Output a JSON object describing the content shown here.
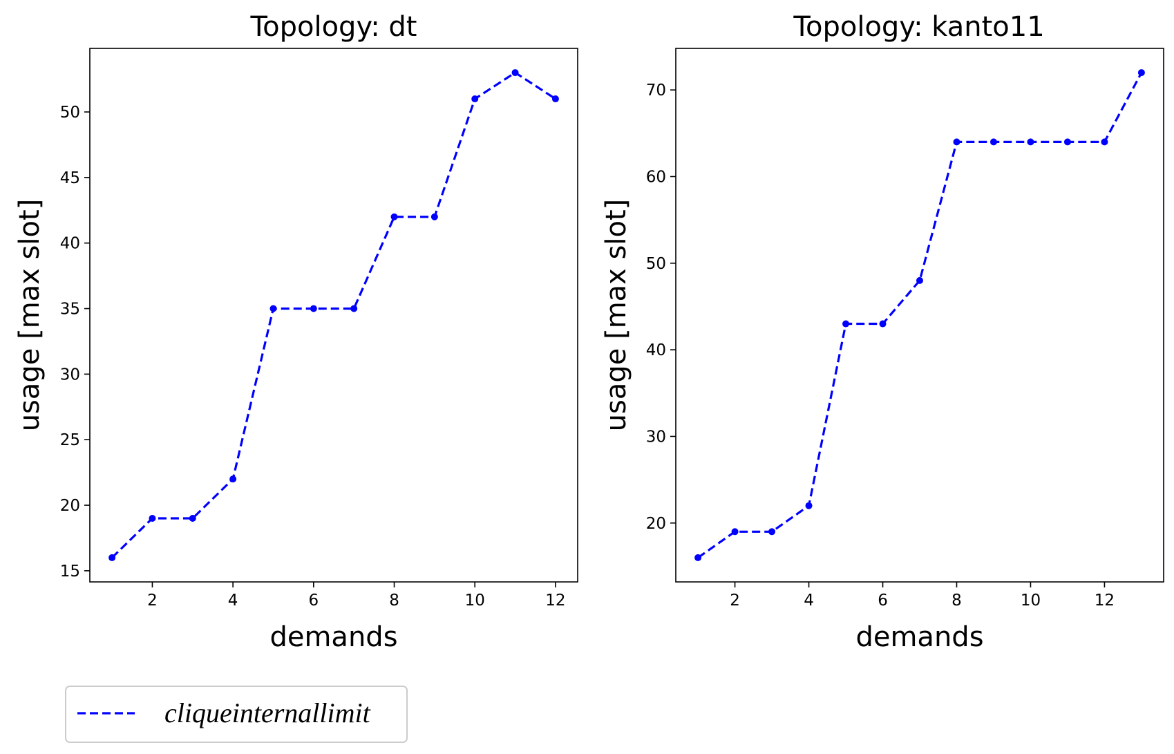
{
  "colors": {
    "series": "#0000ff",
    "axes": "#000000",
    "legend_border": "#cccccc",
    "background": "#ffffff"
  },
  "legend": {
    "label": "cliqueinternallimit",
    "placement": "bottom-left, below plots",
    "line_style": "dashed"
  },
  "chart_data": [
    {
      "type": "line",
      "title": "Topology: dt",
      "xlabel": "demands",
      "ylabel": "usage [max slot]",
      "xlim": [
        0.45,
        12.55
      ],
      "ylim": [
        14.15,
        54.85
      ],
      "xticks": [
        2,
        4,
        6,
        8,
        10,
        12
      ],
      "yticks": [
        15,
        20,
        25,
        30,
        35,
        40,
        45,
        50
      ],
      "grid": false,
      "series": [
        {
          "name": "cliqueinternallimit",
          "color": "#0000ff",
          "line_style": "dashed",
          "marker": "dot",
          "x": [
            1,
            2,
            3,
            4,
            5,
            6,
            7,
            8,
            9,
            10,
            11,
            12
          ],
          "y": [
            16,
            19,
            19,
            22,
            35,
            35,
            35,
            42,
            42,
            51,
            53,
            51
          ]
        }
      ]
    },
    {
      "type": "line",
      "title": "Topology: kanto11",
      "xlabel": "demands",
      "ylabel": "usage [max slot]",
      "xlim": [
        0.4,
        13.6
      ],
      "ylim": [
        13.2,
        74.8
      ],
      "xticks": [
        2,
        4,
        6,
        8,
        10,
        12
      ],
      "yticks": [
        20,
        30,
        40,
        50,
        60,
        70
      ],
      "grid": false,
      "series": [
        {
          "name": "cliqueinternallimit",
          "color": "#0000ff",
          "line_style": "dashed",
          "marker": "dot",
          "x": [
            1,
            2,
            3,
            4,
            5,
            6,
            7,
            8,
            9,
            10,
            11,
            12,
            13
          ],
          "y": [
            16,
            19,
            19,
            22,
            43,
            43,
            48,
            64,
            64,
            64,
            64,
            64,
            72
          ]
        }
      ]
    }
  ]
}
